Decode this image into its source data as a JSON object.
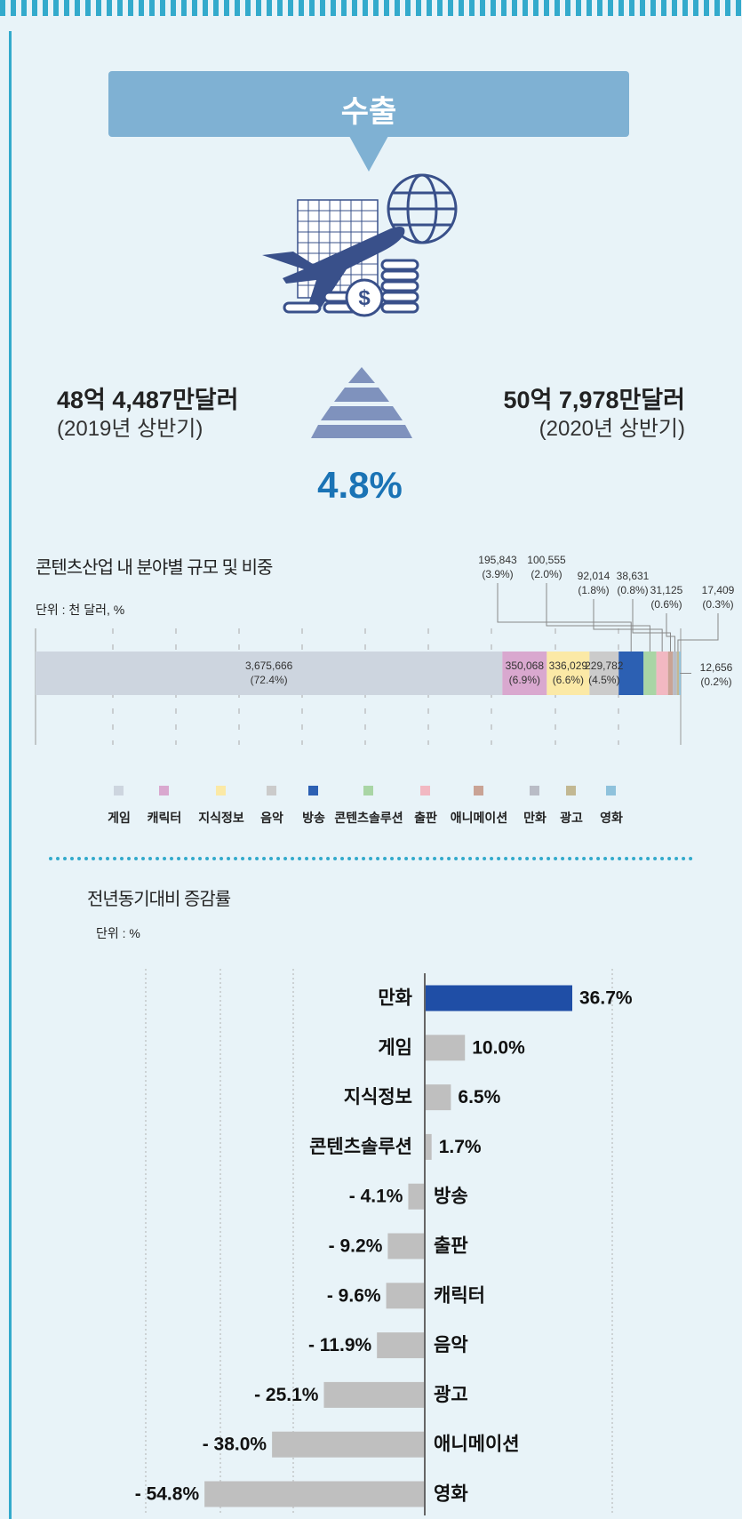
{
  "header": {
    "title": "수출"
  },
  "export": {
    "left_amount": "48억 4,487만달러",
    "left_period": "(2019년 상반기)",
    "right_amount": "50억 7,978만달러",
    "right_period": "(2020년 상반기)",
    "growth": "4.8%"
  },
  "colors": {
    "banner": "#7fb1d3",
    "accent": "#1a73b5",
    "highlight_bar": "#1f4ea6",
    "neutral_bar": "#bfbfbf"
  },
  "icons": {
    "illustration": "export-plane-globe-coins-icon",
    "pyramid": "increase-triangle-icon"
  },
  "chart_data": [
    {
      "type": "bar",
      "orientation": "horizontal-stacked",
      "title": "콘텐츠산업 내 분야별 규모 및 비중",
      "unit": "단위 :  천 달러, %",
      "categories": [
        "게임",
        "캐릭터",
        "지식정보",
        "음악",
        "방송",
        "콘텐츠솔루션",
        "출판",
        "애니메이션",
        "만화",
        "광고",
        "영화"
      ],
      "values": [
        3675666,
        350068,
        336029,
        229782,
        195843,
        100555,
        92014,
        38631,
        31125,
        17409,
        12656
      ],
      "labels": [
        "3,675,666",
        "350,068",
        "336,029",
        "229,782",
        "195,843",
        "100,555",
        "92,014",
        "38,631",
        "31,125",
        "17,409",
        "12,656"
      ],
      "shares": [
        "(72.4%)",
        "(6.9%)",
        "(6.6%)",
        "(4.5%)",
        "(3.9%)",
        "(2.0%)",
        "(1.8%)",
        "(0.8%)",
        "(0.6%)",
        "(0.3%)",
        "(0.2%)"
      ],
      "colors": [
        "#cdd5df",
        "#d9a8cf",
        "#fbe9a6",
        "#cbcbcb",
        "#2c60b3",
        "#a9d5a5",
        "#f2b8c2",
        "#c9a395",
        "#b9bcc6",
        "#c2b893",
        "#8fc2dc"
      ],
      "legend": [
        "게임",
        "캐릭터",
        "지식정보",
        "음악",
        "방송",
        "콘텐츠솔루션",
        "출판",
        "애니메이션",
        "만화",
        "광고",
        "영화"
      ],
      "legend_position": "bottom"
    },
    {
      "type": "bar",
      "orientation": "horizontal",
      "title": "전년동기대비 증감률",
      "unit": "단위 : %",
      "categories": [
        "만화",
        "게임",
        "지식정보",
        "콘텐츠솔루션",
        "방송",
        "출판",
        "캐릭터",
        "음악",
        "광고",
        "애니메이션",
        "영화"
      ],
      "values": [
        36.7,
        10.0,
        6.5,
        1.7,
        -4.1,
        -9.2,
        -9.6,
        -11.9,
        -25.1,
        -38.0,
        -54.8
      ],
      "value_labels": [
        "36.7%",
        "10.0%",
        "6.5%",
        "1.7%",
        "- 4.1%",
        "- 9.2%",
        "- 9.6%",
        "- 11.9%",
        "- 25.1%",
        "- 38.0%",
        "- 54.8%"
      ],
      "grid": true
    }
  ]
}
